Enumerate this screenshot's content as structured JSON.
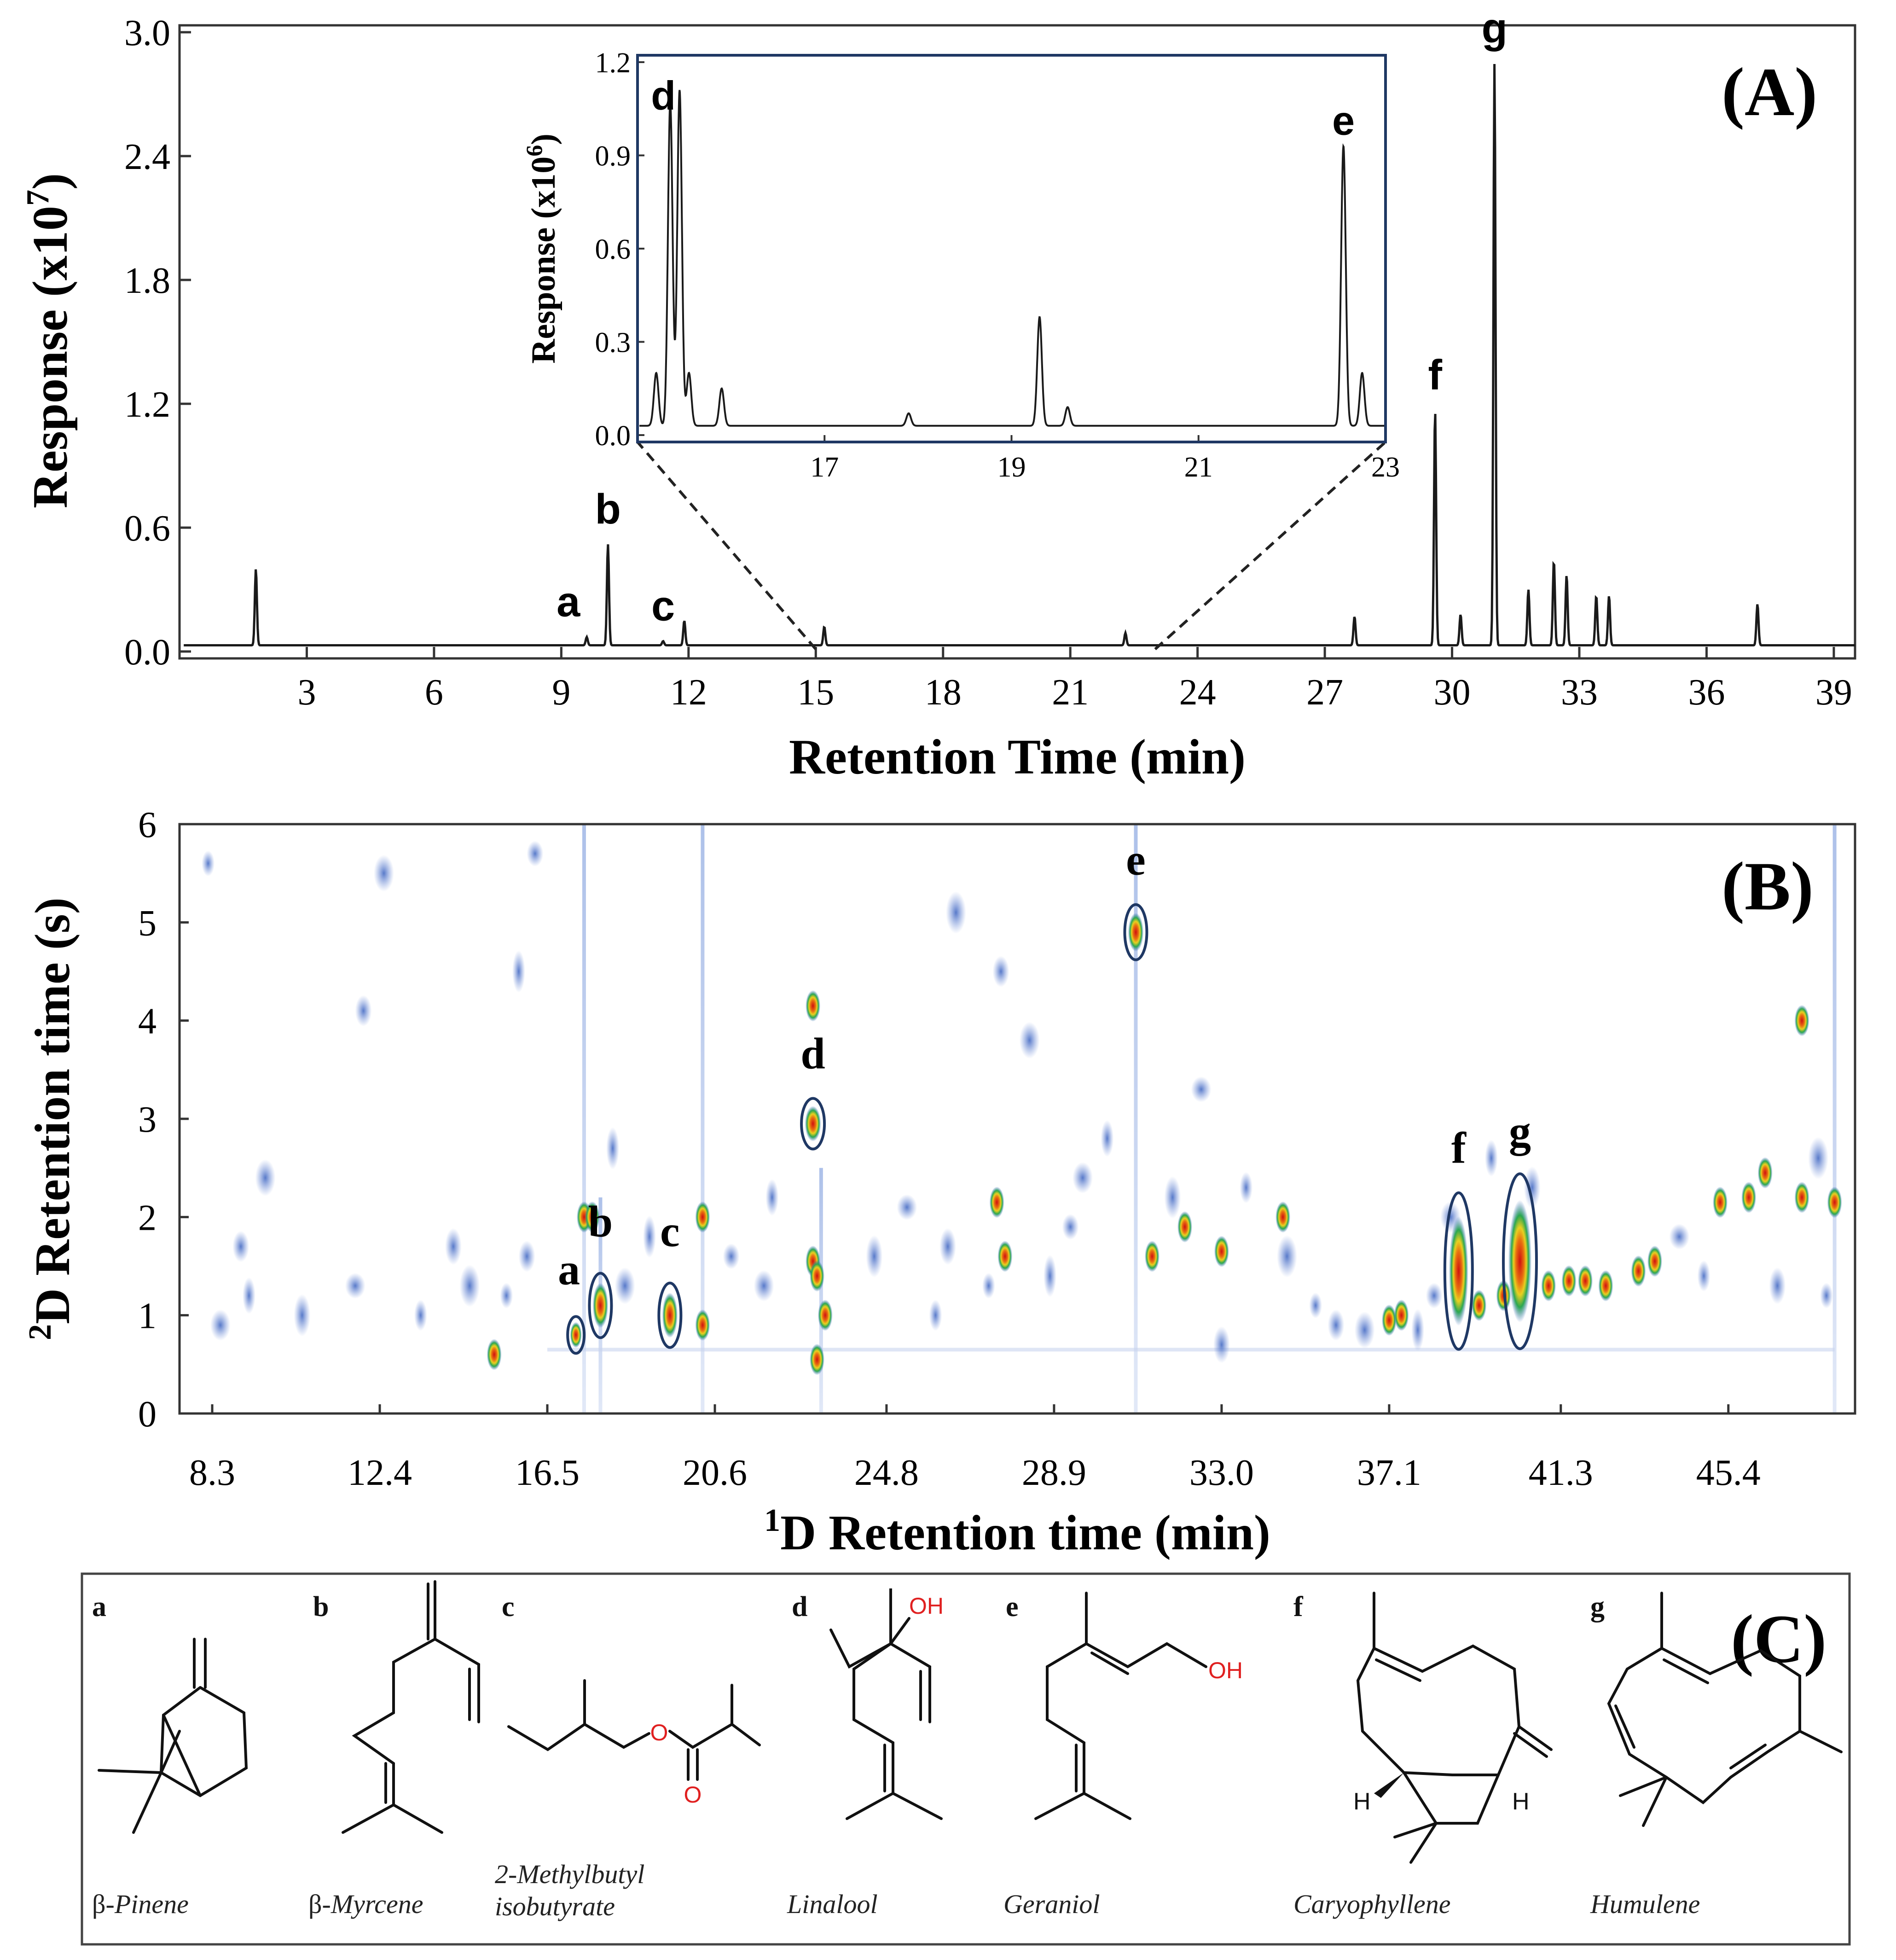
{
  "chart_data": [
    {
      "type": "line",
      "panel": "(A)",
      "title": "",
      "xlabel": "Retention Time (min)",
      "ylabel_main": "Response (x10",
      "ylabel_sup": "7",
      "ylabel_close": ")",
      "xlim": [
        0,
        39.5
      ],
      "ylim": [
        0,
        3.0
      ],
      "x_ticks": [
        "3",
        "6",
        "9",
        "12",
        "15",
        "18",
        "21",
        "24",
        "27",
        "30",
        "33",
        "36",
        "39"
      ],
      "y_ticks": [
        "0.0",
        "0.6",
        "1.2",
        "1.8",
        "2.4",
        "3.0"
      ],
      "baseline": 0.03,
      "peaks": [
        {
          "x": 1.8,
          "y": 0.4,
          "label": ""
        },
        {
          "x": 9.6,
          "y": 0.07,
          "label": "a"
        },
        {
          "x": 10.1,
          "y": 0.52,
          "label": "b"
        },
        {
          "x": 11.4,
          "y": 0.05,
          "label": "c"
        },
        {
          "x": 11.9,
          "y": 0.15,
          "label": ""
        },
        {
          "x": 15.2,
          "y": 0.12,
          "label": ""
        },
        {
          "x": 22.3,
          "y": 0.09,
          "label": ""
        },
        {
          "x": 27.7,
          "y": 0.17,
          "label": ""
        },
        {
          "x": 29.6,
          "y": 1.17,
          "label": "f"
        },
        {
          "x": 30.2,
          "y": 0.18,
          "label": ""
        },
        {
          "x": 31.0,
          "y": 2.85,
          "label": "g"
        },
        {
          "x": 31.8,
          "y": 0.3,
          "label": ""
        },
        {
          "x": 32.4,
          "y": 0.44,
          "label": ""
        },
        {
          "x": 32.7,
          "y": 0.37,
          "label": ""
        },
        {
          "x": 33.4,
          "y": 0.27,
          "label": ""
        },
        {
          "x": 33.7,
          "y": 0.27,
          "label": ""
        },
        {
          "x": 37.2,
          "y": 0.23,
          "label": ""
        }
      ],
      "zoom_range": [
        15,
        23
      ],
      "inset": {
        "ylabel_main": "Response (x10",
        "ylabel_sup": "6",
        "ylabel_close": ")",
        "xlim": [
          15.0,
          23.0
        ],
        "ylim": [
          0,
          1.2
        ],
        "x_ticks": [
          "17",
          "19",
          "21",
          "23"
        ],
        "y_ticks": [
          "0.0",
          "0.3",
          "0.6",
          "0.9",
          "1.2"
        ],
        "baseline": 0.03,
        "peaks": [
          {
            "x": 15.2,
            "y": 0.2,
            "label": ""
          },
          {
            "x": 15.35,
            "y": 1.07,
            "label": "d"
          },
          {
            "x": 15.45,
            "y": 1.11,
            "label": ""
          },
          {
            "x": 15.55,
            "y": 0.2,
            "label": ""
          },
          {
            "x": 15.9,
            "y": 0.15,
            "label": ""
          },
          {
            "x": 17.9,
            "y": 0.07,
            "label": ""
          },
          {
            "x": 19.3,
            "y": 0.38,
            "label": ""
          },
          {
            "x": 19.6,
            "y": 0.09,
            "label": ""
          },
          {
            "x": 22.55,
            "y": 0.93,
            "label": "e"
          },
          {
            "x": 22.75,
            "y": 0.2,
            "label": ""
          }
        ]
      }
    },
    {
      "type": "heatmap",
      "panel": "(B)",
      "xlabel_sup": "1",
      "xlabel": "D Retention time (min)",
      "ylabel_sup": "2",
      "ylabel": "D Retention time (s)",
      "xlim": [
        7.5,
        48.5
      ],
      "ylim": [
        0,
        6
      ],
      "x_ticks": [
        "8.3",
        "12.4",
        "16.5",
        "20.6",
        "24.8",
        "28.9",
        "33.0",
        "37.1",
        "41.3",
        "45.4"
      ],
      "y_ticks": [
        "0",
        "1",
        "2",
        "3",
        "4",
        "5",
        "6"
      ],
      "labeled_spots": [
        {
          "label": "a",
          "x": 17.2,
          "y": 0.8
        },
        {
          "label": "b",
          "x": 17.8,
          "y": 1.1
        },
        {
          "label": "c",
          "x": 19.5,
          "y": 1.0
        },
        {
          "label": "d",
          "x": 23.0,
          "y": 2.95
        },
        {
          "label": "e",
          "x": 30.9,
          "y": 4.9
        },
        {
          "label": "f",
          "x": 38.8,
          "y": 1.45
        },
        {
          "label": "g",
          "x": 40.3,
          "y": 1.55
        }
      ],
      "hot_spots": [
        {
          "x": 17.4,
          "y": 2.0
        },
        {
          "x": 17.6,
          "y": 2.0
        },
        {
          "x": 15.2,
          "y": 0.6
        },
        {
          "x": 20.3,
          "y": 2.0
        },
        {
          "x": 20.3,
          "y": 0.9
        },
        {
          "x": 23.0,
          "y": 1.55
        },
        {
          "x": 23.1,
          "y": 1.4
        },
        {
          "x": 23.0,
          "y": 4.15
        },
        {
          "x": 23.1,
          "y": 0.55
        },
        {
          "x": 23.3,
          "y": 1.0
        },
        {
          "x": 27.5,
          "y": 2.15
        },
        {
          "x": 27.7,
          "y": 1.6
        },
        {
          "x": 31.3,
          "y": 1.6
        },
        {
          "x": 32.1,
          "y": 1.9
        },
        {
          "x": 33.0,
          "y": 1.65
        },
        {
          "x": 34.5,
          "y": 2.0
        },
        {
          "x": 37.1,
          "y": 0.95
        },
        {
          "x": 37.4,
          "y": 1.0
        },
        {
          "x": 39.3,
          "y": 1.1
        },
        {
          "x": 39.9,
          "y": 1.2
        },
        {
          "x": 41.0,
          "y": 1.3
        },
        {
          "x": 41.5,
          "y": 1.35
        },
        {
          "x": 41.9,
          "y": 1.35
        },
        {
          "x": 42.4,
          "y": 1.3
        },
        {
          "x": 43.2,
          "y": 1.45
        },
        {
          "x": 43.6,
          "y": 1.55
        },
        {
          "x": 45.2,
          "y": 2.15
        },
        {
          "x": 45.9,
          "y": 2.2
        },
        {
          "x": 46.3,
          "y": 2.45
        },
        {
          "x": 47.2,
          "y": 4.0
        },
        {
          "x": 47.2,
          "y": 2.2
        },
        {
          "x": 48.0,
          "y": 2.15
        }
      ]
    }
  ],
  "panel_c": {
    "label": "(C)",
    "compounds": [
      {
        "letter": "a",
        "name_prefix": "β-",
        "name": "Pinene",
        "name2": ""
      },
      {
        "letter": "b",
        "name_prefix": "β-",
        "name": "Myrcene",
        "name2": ""
      },
      {
        "letter": "c",
        "name_prefix": "",
        "name": "2-Methylbutyl",
        "name2": "isobutyrate"
      },
      {
        "letter": "d",
        "name_prefix": "",
        "name": "Linalool",
        "name2": ""
      },
      {
        "letter": "e",
        "name_prefix": "",
        "name": "Geraniol",
        "name2": ""
      },
      {
        "letter": "f",
        "name_prefix": "",
        "name": "Caryophyllene",
        "name2": ""
      },
      {
        "letter": "g",
        "name_prefix": "",
        "name": "Humulene",
        "name2": ""
      }
    ],
    "atom_o": "O",
    "atom_oh": "OH",
    "atom_h": "H",
    "bond_color": "#111111",
    "oxygen_color": "#e02020"
  },
  "colors": {
    "trace": "#1a1a1a",
    "inset_frame": "#1f3864",
    "heat_low": "#4a72c8",
    "heat_mid": "#2aa850",
    "heat_high": "#e8d020",
    "heat_peak": "#d01010"
  }
}
